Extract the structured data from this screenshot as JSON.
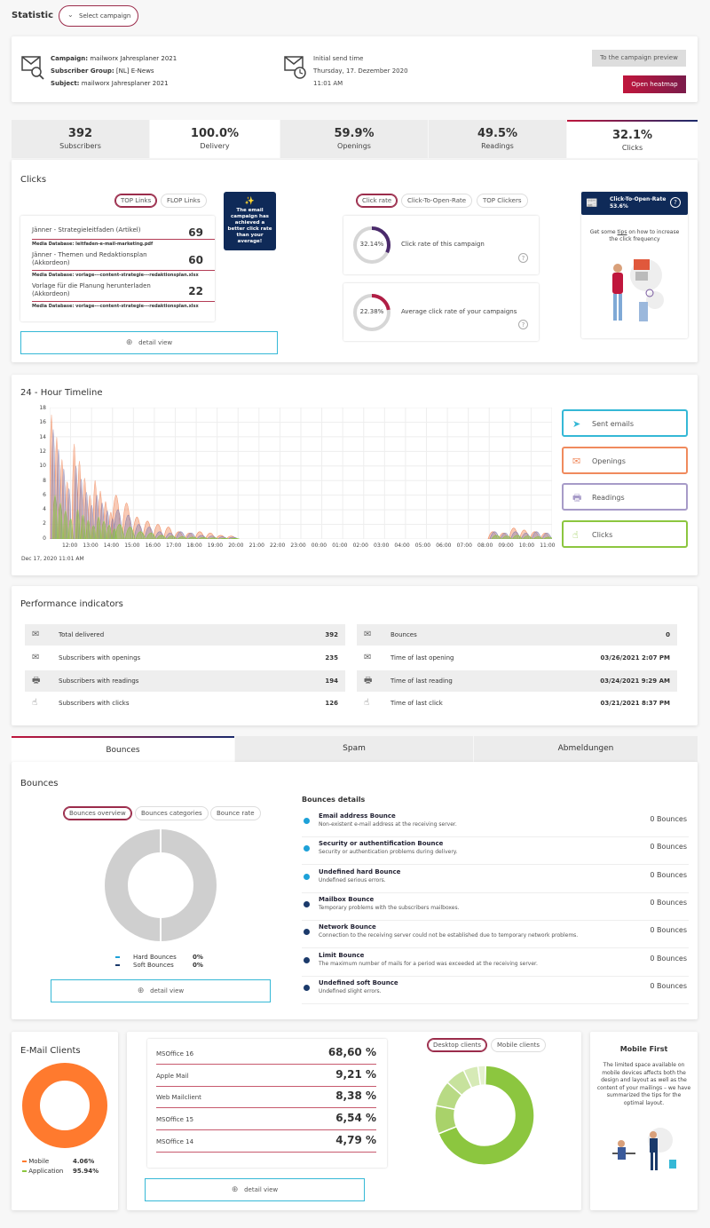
{
  "header": {
    "title": "Statistic",
    "select_label": "Select campaign"
  },
  "campaign": {
    "campaign_label": "Campaign:",
    "campaign_value": "mailworx Jahresplaner 2021",
    "group_label": "Subscriber Group:",
    "group_value": "[NL] E-News",
    "subject_label": "Subject:",
    "subject_value": "mailworx Jahresplaner 2021",
    "send_label": "Initial send time",
    "send_date": "Thursday, 17. Dezember 2020",
    "send_time": "11:01 AM",
    "preview_btn": "To the campaign preview",
    "heatmap_btn": "Open heatmap"
  },
  "stats": [
    {
      "value": "392",
      "label": "Subscribers"
    },
    {
      "value": "100.0%",
      "label": "Delivery"
    },
    {
      "value": "59.9%",
      "label": "Openings"
    },
    {
      "value": "49.5%",
      "label": "Readings"
    },
    {
      "value": "32.1%",
      "label": "Clicks"
    }
  ],
  "clicks": {
    "title": "Clicks",
    "tabs": [
      "TOP Links",
      "FLOP Links"
    ],
    "links": [
      {
        "title": "Jänner - Strategieleitfaden (Artikel)",
        "count": "69",
        "media": "Media Database: leitfaden-e-mail-marketing.pdf"
      },
      {
        "title": "Jänner - Themen und Redaktionsplan (Akkordeon)",
        "count": "60",
        "media": "Media Database: vorlage---content-strategie---redaktionsplan.xlsx"
      },
      {
        "title": "Vorlage für die Planung herunterladen (Akkordeon)",
        "count": "22",
        "media": "Media Database: vorlage---content-strategie---redaktionsplan.xlsx"
      }
    ],
    "detail": "detail view",
    "badge": "The email campaign has achieved a better click rate than your average!",
    "rate_tabs": [
      "Click rate",
      "Click-To-Open-Rate",
      "TOP Clickers"
    ],
    "rate1": {
      "value": "32.14%",
      "label": "Click rate of this campaign",
      "fraction": 0.3214
    },
    "rate2": {
      "value": "22.38%",
      "label": "Average click rate of your campaigns",
      "fraction": 0.2238
    },
    "ctor": {
      "label": "Click-To-Open-Rate",
      "value": "53.6%"
    },
    "tips_pre": "Get some ",
    "tips_link": "tips",
    "tips_post": " on how to increase the click frequency"
  },
  "timeline": {
    "title": "24 - Hour Timeline",
    "yticks": [
      "18",
      "16",
      "14",
      "12",
      "10",
      "8",
      "6",
      "4",
      "2",
      "0"
    ],
    "xticks": [
      "12:00",
      "13:00",
      "14:00",
      "15:00",
      "16:00",
      "17:00",
      "18:00",
      "19:00",
      "20:00",
      "21:00",
      "22:00",
      "23:00",
      "00:00",
      "01:00",
      "02:00",
      "03:00",
      "04:00",
      "05:00",
      "06:00",
      "07:00",
      "08:00",
      "09:00",
      "10:00",
      "11:00"
    ],
    "date": "Dec 17, 2020 11:01 AM",
    "legend": [
      "Sent emails",
      "Openings",
      "Readings",
      "Clicks"
    ],
    "colors": {
      "sent": "#35b8d6",
      "openings": "#f08a5d",
      "readings": "#a79bc8",
      "clicks": "#8cc63f"
    }
  },
  "chart_data": {
    "type": "area",
    "x": [
      "11:00",
      "12:00",
      "13:00",
      "14:00",
      "15:00",
      "16:00",
      "17:00",
      "18:00",
      "19:00",
      "08:00",
      "09:00",
      "10:00"
    ],
    "ylim": [
      0,
      18
    ],
    "series": [
      {
        "name": "Openings",
        "values": [
          17,
          13,
          8,
          6,
          3,
          2,
          1,
          1,
          0.5,
          1,
          1.5,
          1
        ]
      },
      {
        "name": "Readings",
        "values": [
          15,
          10,
          6,
          4,
          2,
          1,
          1,
          0.5,
          0.3,
          1,
          1,
          1
        ]
      },
      {
        "name": "Clicks",
        "values": [
          6,
          4,
          3,
          2,
          1,
          0.5,
          0.3,
          0.2,
          0.1,
          0.5,
          0.5,
          0.3
        ]
      }
    ]
  },
  "performance": {
    "title": "Performance indicators",
    "left": [
      {
        "label": "Total delivered",
        "value": "392",
        "icon": "✉"
      },
      {
        "label": "Subscribers with openings",
        "value": "235",
        "icon": "✉"
      },
      {
        "label": "Subscribers with readings",
        "value": "194",
        "icon": "🖶"
      },
      {
        "label": "Subscribers with clicks",
        "value": "126",
        "icon": "☝"
      }
    ],
    "right": [
      {
        "label": "Bounces",
        "value": "0",
        "icon": "✉"
      },
      {
        "label": "Time of last opening",
        "value": "03/26/2021 2:07 PM",
        "icon": "✉"
      },
      {
        "label": "Time of last reading",
        "value": "03/24/2021 9:29 AM",
        "icon": "🖶"
      },
      {
        "label": "Time of last click",
        "value": "03/21/2021 8:37 PM",
        "icon": "☝"
      }
    ]
  },
  "tabs": [
    "Bounces",
    "Spam",
    "Abmeldungen"
  ],
  "bounces": {
    "title": "Bounces",
    "subtabs": [
      "Bounces overview",
      "Bounces categories",
      "Bounce rate"
    ],
    "legend": [
      {
        "label": "Hard Bounces",
        "value": "0%"
      },
      {
        "label": "Soft Bounces",
        "value": "0%"
      }
    ],
    "detail": "detail view",
    "details_title": "Bounces details",
    "items": [
      {
        "title": "Email address Bounce",
        "desc": "Non-existent e-mail address at the receiving server.",
        "count": "0 Bounces",
        "color": "#1da1d8"
      },
      {
        "title": "Security or authentification Bounce",
        "desc": "Security or authentication problems during delivery.",
        "count": "0 Bounces",
        "color": "#1da1d8"
      },
      {
        "title": "Undefined hard Bounce",
        "desc": "Undefined serious errors.",
        "count": "0 Bounces",
        "color": "#1da1d8"
      },
      {
        "title": "Mailbox Bounce",
        "desc": "Temporary problems with the subscribers mailboxes.",
        "count": "0 Bounces",
        "color": "#1b3a6b"
      },
      {
        "title": "Network Bounce",
        "desc": "Connection to the receiving server could not be established due to temporary network problems.",
        "count": "0 Bounces",
        "color": "#1b3a6b"
      },
      {
        "title": "Limit Bounce",
        "desc": "The maximum number of mails for a period was exceeded at the receiving server.",
        "count": "0 Bounces",
        "color": "#1b3a6b"
      },
      {
        "title": "Undefined soft Bounce",
        "desc": "Undefined slight errors.",
        "count": "0 Bounces",
        "color": "#1b3a6b"
      }
    ]
  },
  "email_clients": {
    "title": "E-Mail Clients",
    "legend": [
      {
        "label": "Mobile",
        "value": "4.06%",
        "color": "#ff7a2e"
      },
      {
        "label": "Application",
        "value": "95.94%",
        "color": "#8cc63f"
      }
    ],
    "clients": [
      {
        "name": "MSOffice 16",
        "value": "68,60 %"
      },
      {
        "name": "Apple Mail",
        "value": "9,21 %"
      },
      {
        "name": "Web Mailclient",
        "value": "8,38 %"
      },
      {
        "name": "MSOffice 15",
        "value": "6,54 %"
      },
      {
        "name": "MSOffice 14",
        "value": "4,79 %"
      }
    ],
    "detail": "detail view",
    "subtabs": [
      "Desktop clients",
      "Mobile clients"
    ],
    "mobile_title": "Mobile First",
    "mobile_text": "The limited space available on mobile devices affects both the design and layout as well as the content of your mailings – we have summarized the tips for the optimal layout."
  }
}
